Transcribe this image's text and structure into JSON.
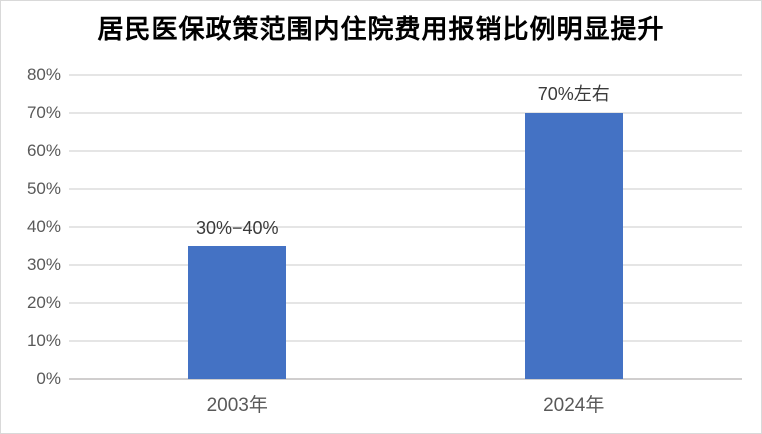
{
  "title": "居民医保政策范围内住院费用报销比例明显提升",
  "chart_data": {
    "type": "bar",
    "title": "居民医保政策范围内住院费用报销比例明显提升",
    "categories": [
      "2003年",
      "2024年"
    ],
    "values": [
      35,
      70
    ],
    "data_labels": [
      "30%−40%",
      "70%左右"
    ],
    "xlabel": "",
    "ylabel": "",
    "ylim": [
      0,
      80
    ],
    "ytick_step": 10,
    "ytick_suffix": "%",
    "ytick_labels": [
      "0%",
      "10%",
      "20%",
      "30%",
      "40%",
      "50%",
      "60%",
      "70%",
      "80%"
    ],
    "grid": true,
    "legend_position": "none",
    "colors": {
      "bar": "#4472C4",
      "gridline": "#e5e5e5",
      "axis_line": "#d0cece",
      "tick_text": "#595959",
      "data_label_text": "#3a3a3a",
      "title_text": "#000000",
      "frame_border": "#d9d9d9",
      "background": "#ffffff"
    }
  }
}
